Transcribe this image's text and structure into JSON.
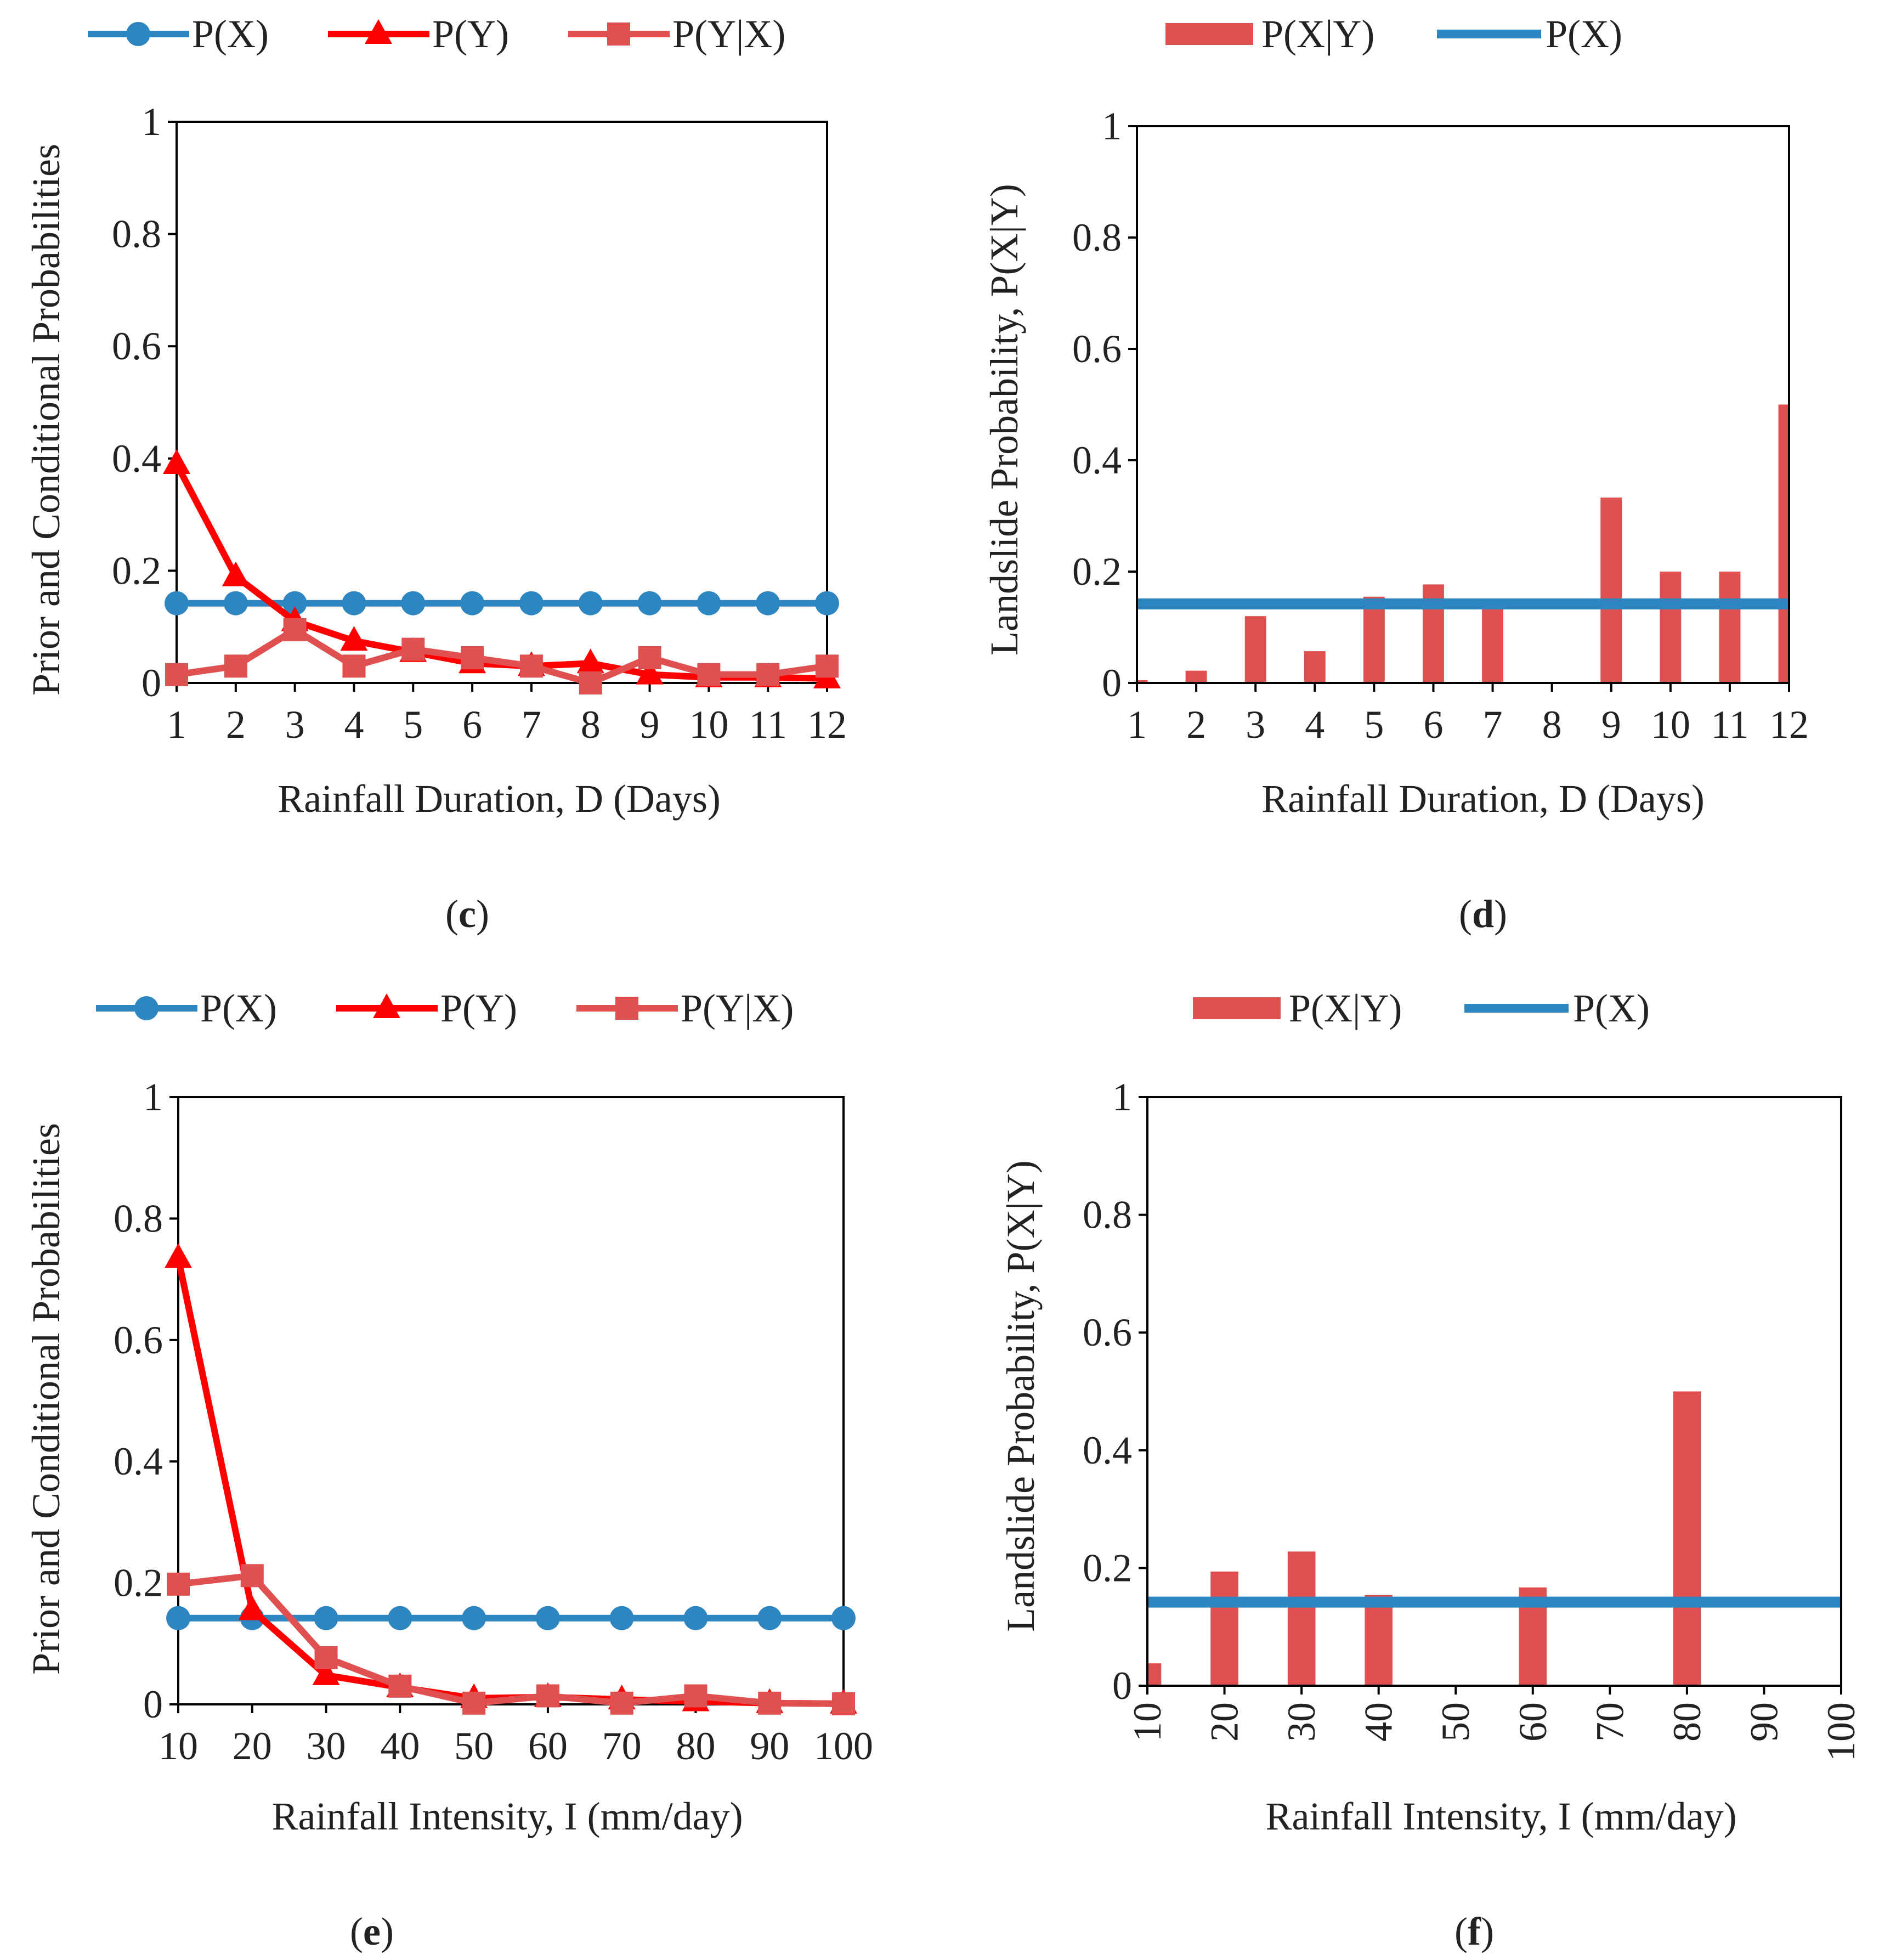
{
  "colors": {
    "px": "#2e86c1",
    "py": "#ff0000",
    "pyx": "#e05050",
    "pxy_bar": "#e05050",
    "axis": "#000000"
  },
  "chart_data": [
    {
      "id": "c",
      "type": "line",
      "panel_label": "c",
      "xlabel": "Rainfall Duration, D (Days)",
      "ylabel": "Prior and Conditional Probabilities",
      "categories": [
        "1",
        "2",
        "3",
        "4",
        "5",
        "6",
        "7",
        "8",
        "9",
        "10",
        "11",
        "12"
      ],
      "yticks": [
        "0",
        "0.2",
        "0.4",
        "0.6",
        "0.8",
        "1"
      ],
      "ylim": [
        0,
        1
      ],
      "legend": [
        "P(X)",
        "P(Y)",
        "P(Y|X)"
      ],
      "series": [
        {
          "name": "P(X)",
          "marker": "circle",
          "values": [
            0.142,
            0.142,
            0.142,
            0.142,
            0.142,
            0.142,
            0.142,
            0.142,
            0.142,
            0.142,
            0.142,
            0.142
          ]
        },
        {
          "name": "P(Y)",
          "marker": "triangle",
          "values": [
            0.39,
            0.19,
            0.11,
            0.075,
            0.055,
            0.035,
            0.03,
            0.035,
            0.015,
            0.01,
            0.01,
            0.008
          ]
        },
        {
          "name": "P(Y|X)",
          "marker": "square",
          "values": [
            0.015,
            0.03,
            0.095,
            0.03,
            0.06,
            0.045,
            0.03,
            0.0,
            0.045,
            0.015,
            0.015,
            0.03
          ]
        }
      ]
    },
    {
      "id": "d",
      "type": "bar",
      "panel_label": "d",
      "xlabel": "Rainfall Duration, D (Days)",
      "ylabel": "Landslide Probability, P(X|Y)",
      "categories": [
        "1",
        "2",
        "3",
        "4",
        "5",
        "6",
        "7",
        "8",
        "9",
        "10",
        "11",
        "12"
      ],
      "yticks": [
        "0",
        "0.2",
        "0.4",
        "0.6",
        "0.8",
        "1"
      ],
      "ylim": [
        0,
        1
      ],
      "legend": [
        "P(X|Y)",
        "P(X)"
      ],
      "bars": {
        "name": "P(X|Y)",
        "values": [
          0.005,
          0.022,
          0.12,
          0.057,
          0.155,
          0.177,
          0.14,
          0.0,
          0.333,
          0.2,
          0.2,
          0.5
        ]
      },
      "baseline": {
        "name": "P(X)",
        "value": 0.142
      }
    },
    {
      "id": "e",
      "type": "line",
      "panel_label": "e",
      "xlabel": "Rainfall Intensity, I (mm/day)",
      "ylabel": "Prior and Conditional Probabilities",
      "categories": [
        "10",
        "20",
        "30",
        "40",
        "50",
        "60",
        "70",
        "80",
        "90",
        "100"
      ],
      "yticks": [
        "0",
        "0.2",
        "0.4",
        "0.6",
        "0.8",
        "1"
      ],
      "ylim": [
        0,
        1
      ],
      "legend": [
        "P(X)",
        "P(Y)",
        "P(Y|X)"
      ],
      "series": [
        {
          "name": "P(X)",
          "marker": "circle",
          "values": [
            0.142,
            0.142,
            0.142,
            0.142,
            0.142,
            0.142,
            0.142,
            0.142,
            0.142,
            0.142
          ]
        },
        {
          "name": "P(Y)",
          "marker": "triangle",
          "values": [
            0.735,
            0.155,
            0.048,
            0.028,
            0.01,
            0.012,
            0.008,
            0.005,
            0.002,
            0.001
          ]
        },
        {
          "name": "P(Y|X)",
          "marker": "square",
          "values": [
            0.198,
            0.212,
            0.077,
            0.03,
            0.002,
            0.014,
            0.002,
            0.014,
            0.002,
            0.001
          ]
        }
      ]
    },
    {
      "id": "f",
      "type": "bar",
      "panel_label": "f",
      "xlabel": "Rainfall Intensity, I (mm/day)",
      "ylabel": "Landslide Probability, P(X|Y)",
      "categories": [
        "10",
        "20",
        "30",
        "40",
        "50",
        "60",
        "70",
        "80",
        "90",
        "100"
      ],
      "yticks": [
        "0",
        "0.2",
        "0.4",
        "0.6",
        "0.8",
        "1"
      ],
      "ylim": [
        0,
        1
      ],
      "legend": [
        "P(X|Y)",
        "P(X)"
      ],
      "bars": {
        "name": "P(X|Y)",
        "values": [
          0.038,
          0.194,
          0.228,
          0.154,
          0.0,
          0.167,
          0.0,
          0.5,
          0.0,
          0.0
        ]
      },
      "baseline": {
        "name": "P(X)",
        "value": 0.142
      }
    }
  ]
}
